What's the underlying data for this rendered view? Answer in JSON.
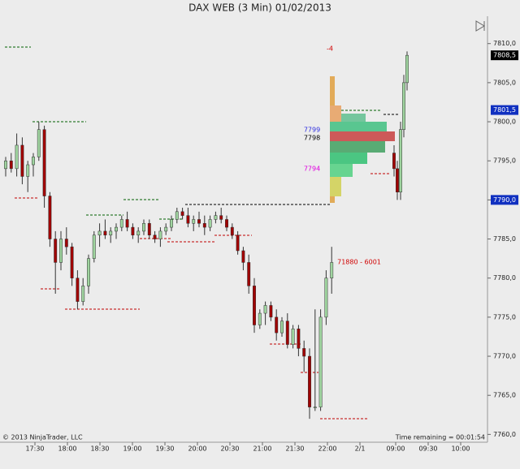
{
  "chart_data": {
    "type": "candlestick",
    "title": "DAX WEB (3 Min)  01/02/2013",
    "x": [
      1,
      2.7,
      4.4,
      6.1,
      7.8,
      9.5,
      11.2,
      12.9,
      14.6,
      16.3,
      18,
      19.7,
      21.4,
      23.1,
      24.8,
      26.5,
      28.2,
      29.9,
      31.6,
      33.3,
      35,
      36.7,
      38.4,
      40.1,
      41.8,
      43.5,
      45.2,
      46.9,
      48.6,
      50.3,
      52,
      53.7,
      55.4,
      57.1,
      58.8,
      60.5,
      62.2,
      63.9,
      65.6,
      67.3,
      69,
      70.7,
      72.4,
      74.1,
      75.8,
      77.5,
      79.2,
      80.9,
      82.6,
      84.3,
      86,
      87.7,
      89.4,
      91.1,
      92.8,
      94.5,
      96.2,
      97.9,
      99.6,
      101.3,
      120.5,
      121.5,
      122.5,
      123.5,
      124.5
    ],
    "open": [
      7794,
      7795,
      7794,
      7797,
      7793,
      7794.5,
      7795.5,
      7799,
      7790.5,
      7785,
      7782,
      7785,
      7784,
      7780,
      7777,
      7779,
      7782.5,
      7785.5,
      7786,
      7785.5,
      7786,
      7786.5,
      7787.5,
      7786.5,
      7785.5,
      7786,
      7787,
      7785.5,
      7785,
      7786,
      7786.5,
      7787.5,
      7788.5,
      7788,
      7787,
      7787.5,
      7787,
      7786.5,
      7787.5,
      7788,
      7787.5,
      7786.5,
      7785.5,
      7783.5,
      7782,
      7779,
      7774,
      7775.5,
      7776.5,
      7775,
      7773,
      7774.5,
      7771.5,
      7773.5,
      7771,
      7770,
      7763.5,
      7763.5,
      7775,
      7780,
      7796,
      7794,
      7791,
      7799,
      7805
    ],
    "high": [
      7795.5,
      7796,
      7798.5,
      7798,
      7795,
      7796,
      7800,
      7799.5,
      7791,
      7786,
      7786,
      7786.5,
      7784.5,
      7781,
      7780,
      7783,
      7786,
      7787,
      7787.5,
      7786.5,
      7787,
      7788,
      7788.5,
      7787,
      7786.5,
      7787.5,
      7787.5,
      7786,
      7786.5,
      7787,
      7788,
      7789,
      7789,
      7789,
      7788,
      7788.5,
      7788,
      7788,
      7788.5,
      7789,
      7788,
      7787,
      7786,
      7784,
      7783,
      7780,
      7776,
      7777,
      7777,
      7776,
      7775,
      7775.5,
      7774,
      7774,
      7772,
      7771,
      7776,
      7776,
      7781,
      7784,
      7797,
      7795,
      7800,
      7806,
      7809
    ],
    "low": [
      7793,
      7793.5,
      7793,
      7792,
      7791,
      7793,
      7795,
      7789,
      7784,
      7778,
      7781,
      7783,
      7779,
      7776,
      7776.5,
      7778,
      7782,
      7784,
      7785,
      7784.5,
      7785,
      7786,
      7786,
      7785,
      7784.5,
      7785.5,
      7785,
      7784.5,
      7784,
      7785.5,
      7786,
      7787,
      7787.5,
      7786.5,
      7786,
      7786.5,
      7785.5,
      7786,
      7787,
      7787,
      7786,
      7785,
      7783,
      7781,
      7778,
      7773,
      7773.5,
      7774,
      7774.5,
      7772,
      7772.5,
      7771,
      7771,
      7770,
      7768,
      7762,
      7763,
      7763,
      7774,
      7778,
      7793,
      7790,
      7790,
      7798,
      7804
    ],
    "close": [
      7795,
      7794,
      7797,
      7793,
      7794.5,
      7795.5,
      7799,
      7790.5,
      7785,
      7782,
      7785,
      7784,
      7780,
      7777,
      7779,
      7782.5,
      7785.5,
      7786,
      7785.5,
      7786,
      7786.5,
      7787.5,
      7786.5,
      7785.5,
      7786,
      7787,
      7785.5,
      7785,
      7786,
      7786.5,
      7787.5,
      7788.5,
      7788,
      7787,
      7787.5,
      7787,
      7786.5,
      7787.5,
      7788,
      7787.5,
      7786.5,
      7785.5,
      7783.5,
      7782,
      7779,
      7774,
      7775.5,
      7776.5,
      7775,
      7773,
      7774.5,
      7771.5,
      7773.5,
      7771,
      7770,
      7763.5,
      7763.5,
      7775,
      7780,
      7782,
      7794,
      7791,
      7799,
      7805,
      7808.5
    ],
    "up_color": "#9fd49f",
    "down_color": "#a00000",
    "xlim": [
      0,
      150
    ],
    "xticks": [
      {
        "value": 10,
        "label": "17:30"
      },
      {
        "value": 20,
        "label": "18:00"
      },
      {
        "value": 30,
        "label": "18:30"
      },
      {
        "value": 40,
        "label": "19:00"
      },
      {
        "value": 50,
        "label": "19:30"
      },
      {
        "value": 60,
        "label": "20:00"
      },
      {
        "value": 70,
        "label": "20:30"
      },
      {
        "value": 80,
        "label": "21:00"
      },
      {
        "value": 90,
        "label": "21:30"
      },
      {
        "value": 100,
        "label": "22:00"
      },
      {
        "value": 110,
        "label": "2/1"
      },
      {
        "value": 121,
        "label": "09:00"
      },
      {
        "value": 131,
        "label": "09:30"
      },
      {
        "value": 141,
        "label": "10:00"
      }
    ],
    "ylim": [
      7759,
      7813.5
    ],
    "yticks": [
      {
        "value": 7760,
        "label": "7760,0"
      },
      {
        "value": 7765,
        "label": "7765,0"
      },
      {
        "value": 7770,
        "label": "7770,0"
      },
      {
        "value": 7775,
        "label": "7775,0"
      },
      {
        "value": 7780,
        "label": "7780,0"
      },
      {
        "value": 7785,
        "label": "7785,0"
      },
      {
        "value": 7790,
        "label": "7790,0"
      },
      {
        "value": 7795,
        "label": "7795,0"
      },
      {
        "value": 7800,
        "label": "7800,0"
      },
      {
        "value": 7805,
        "label": "7805,0"
      },
      {
        "value": 7810,
        "label": "7810,0"
      }
    ],
    "price_markers": [
      {
        "value": 7808.5,
        "label": "7808,5",
        "color": "#000000"
      },
      {
        "value": 7801.5,
        "label": "7801,5",
        "color": "#1030c0"
      },
      {
        "value": 7790,
        "label": "7790,0",
        "color": "#1030c0"
      }
    ],
    "annotations": [
      "-4",
      "7799",
      "7798",
      "7794",
      "71880 - 6001"
    ],
    "copyright": "© 2013 NinjaTrader, LLC",
    "time_remaining": "Time remaining = 00:01:54"
  }
}
